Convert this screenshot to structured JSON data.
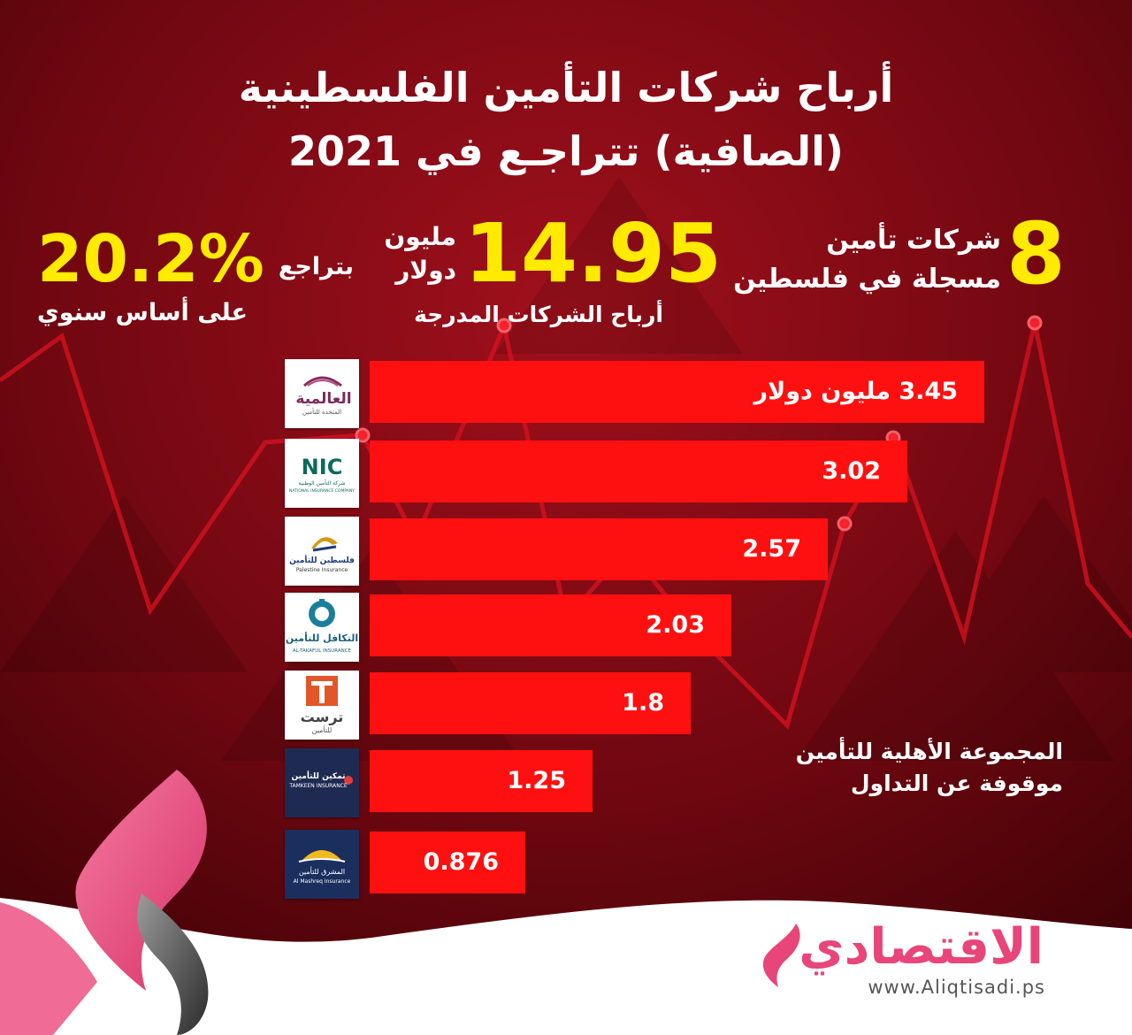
{
  "title": {
    "line1": "أرباح شركات التأمين الفلسطينية",
    "line2": "(الصافية) تتراجـع في 2021"
  },
  "stats": {
    "companies_count": "8",
    "companies_text_line1": "شركات تأمين",
    "companies_text_line2": "مسجلة في فلسطين",
    "profit_value": "14.95",
    "profit_unit_line1": "مليون",
    "profit_unit_line2": "دولار",
    "profit_caption": "أرباح الشركات المدرجة",
    "decline_word": "بتراجع",
    "decline_value": "20.2%",
    "decline_caption": "على أساس سنوي"
  },
  "chart_data": {
    "type": "bar",
    "orientation": "horizontal",
    "categories": [
      "العالمية المتحدة للتأمين",
      "NIC شركة التأمين الوطنية",
      "فلسطين للتأمين",
      "التكافل للتأمين",
      "ترست للتأمين",
      "تمكين للتأمين",
      "المشرق للتأمين"
    ],
    "values": [
      3.45,
      3.02,
      2.57,
      2.03,
      1.8,
      1.25,
      0.876
    ],
    "labels": [
      "3.45 مليون دولار",
      "3.02",
      "2.57",
      "2.03",
      "1.8",
      "1.25",
      "0.876"
    ],
    "unit": "مليون دولار",
    "bar_color": "#ff1010",
    "xlim": [
      0,
      3.45
    ]
  },
  "logos": [
    {
      "icon": "al-alamia-logo",
      "text": "العالمية",
      "sub": "المتحدة للتأمين"
    },
    {
      "icon": "nic-logo",
      "text": "NIC",
      "sub": "شركة التأمين الوطنية",
      "sub2": "NATIONAL INSURANCE COMPANY"
    },
    {
      "icon": "palestine-insurance-logo",
      "text": "فلسطين للتأمين",
      "sub": "Palestine Insurance"
    },
    {
      "icon": "al-takaful-logo",
      "text": "التكافل للتأمين",
      "sub": "AL-TAKAFUL INSURANCE"
    },
    {
      "icon": "trust-logo",
      "text": "ترست",
      "sub": "للتأمين"
    },
    {
      "icon": "tamkeen-logo",
      "text": "تمكين للتأمين",
      "sub": "TAMKEEN INSURANCE"
    },
    {
      "icon": "al-mashreq-logo",
      "text": "المشرق للتأمين",
      "sub": "Al Mashreq Insurance"
    }
  ],
  "note": {
    "line1": "المجموعة الأهلية للتأمين",
    "line2": "موقوفة عن التداول"
  },
  "brand": {
    "name": "الاقتصادي",
    "url": "www.Aliqtisadi.ps"
  },
  "colors": {
    "background_dark": "#4a0308",
    "background_mid": "#8c0a14",
    "accent_yellow": "#ffea00",
    "bar_red": "#ff1010",
    "brand_pink": "#e8457a"
  }
}
